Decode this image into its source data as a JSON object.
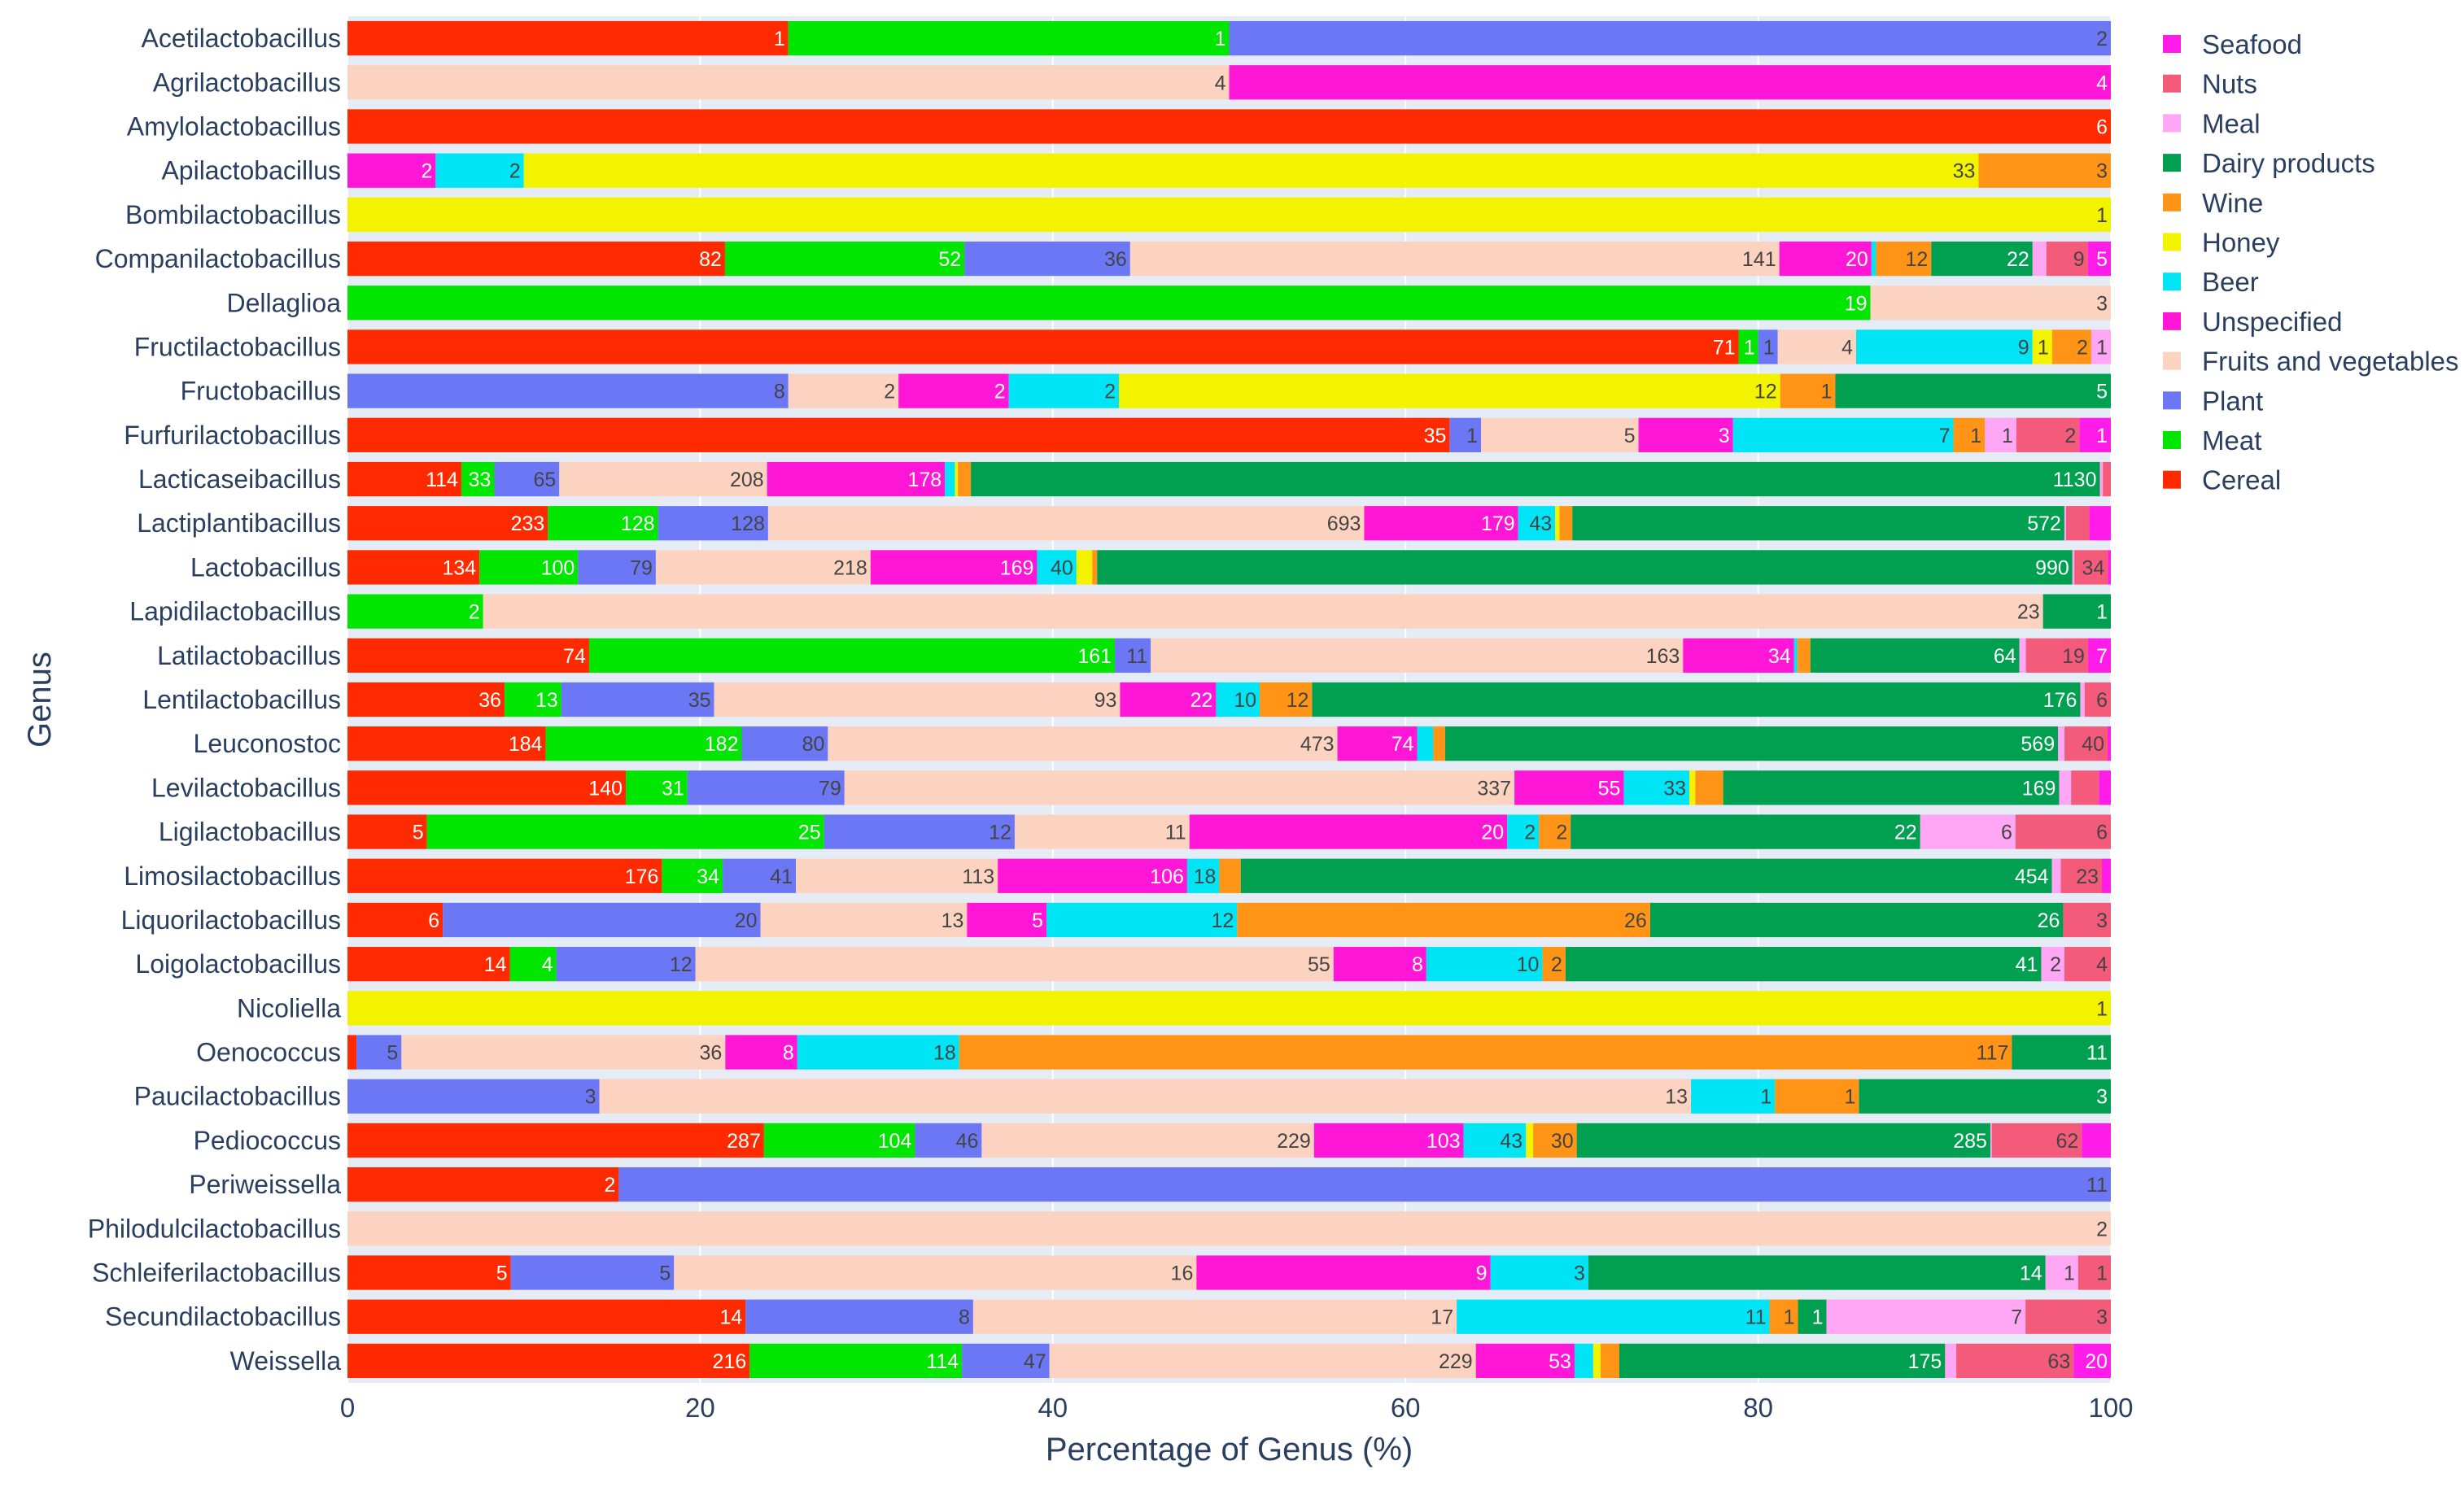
{
  "chart_data": {
    "type": "bar",
    "orientation": "horizontal",
    "stacking": "percent",
    "xlabel": "Percentage of Genus (%)",
    "ylabel": "Genus",
    "xlim": [
      0,
      100
    ],
    "xticks": [
      0,
      20,
      40,
      60,
      80,
      100
    ],
    "grid": true,
    "legend_position": "top-right",
    "legend_order": [
      "Seafood",
      "Nuts",
      "Meal",
      "Dairy products",
      "Wine",
      "Honey",
      "Beer",
      "Unspecified",
      "Fruits and vegetables",
      "Plant",
      "Meat",
      "Cereal"
    ],
    "stack_order": [
      "Cereal",
      "Meat",
      "Plant",
      "Fruits and vegetables",
      "Unspecified",
      "Beer",
      "Honey",
      "Wine",
      "Dairy products",
      "Meal",
      "Nuts",
      "Seafood"
    ],
    "colors": {
      "Cereal": "#ff2a00",
      "Meat": "#00e600",
      "Plant": "#6b77f5",
      "Fruits and vegetables": "#fcd3c0",
      "Unspecified": "#ff16d6",
      "Beer": "#00e5f5",
      "Honey": "#f3f300",
      "Wine": "#ff9416",
      "Dairy products": "#00a050",
      "Meal": "#ffa6f5",
      "Nuts": "#f45a7a",
      "Seafood": "#ff1ce8"
    },
    "categories": [
      "Acetilactobacillus",
      "Agrilactobacillus",
      "Amylolactobacillus",
      "Apilactobacillus",
      "Bombilactobacillus",
      "Companilactobacillus",
      "Dellaglioa",
      "Fructilactobacillus",
      "Fructobacillus",
      "Furfurilactobacillus",
      "Lacticaseibacillus",
      "Lactiplantibacillus",
      "Lactobacillus",
      "Lapidilactobacillus",
      "Latilactobacillus",
      "Lentilactobacillus",
      "Leuconostoc",
      "Levilactobacillus",
      "Ligilactobacillus",
      "Limosilactobacillus",
      "Liquorilactobacillus",
      "Loigolactobacillus",
      "Nicoliella",
      "Oenococcus",
      "Paucilactobacillus",
      "Pediococcus",
      "Periweissella",
      "Philodulcilactobacillus",
      "Schleiferilactobacillus",
      "Secundilactobacillus",
      "Weissella"
    ],
    "series": [
      {
        "name": "Cereal",
        "values": [
          1,
          0,
          6,
          0,
          0,
          82,
          0,
          71,
          0,
          35,
          114,
          233,
          134,
          0,
          74,
          36,
          184,
          140,
          5,
          176,
          6,
          14,
          0,
          1,
          0,
          287,
          2,
          0,
          5,
          14,
          216
        ]
      },
      {
        "name": "Meat",
        "values": [
          1,
          0,
          0,
          0,
          0,
          52,
          19,
          1,
          0,
          0,
          33,
          128,
          100,
          2,
          161,
          13,
          182,
          31,
          25,
          34,
          0,
          4,
          0,
          0,
          0,
          104,
          0,
          0,
          0,
          0,
          114
        ]
      },
      {
        "name": "Plant",
        "values": [
          2,
          0,
          0,
          0,
          0,
          36,
          0,
          1,
          8,
          1,
          65,
          128,
          79,
          0,
          11,
          35,
          80,
          79,
          12,
          41,
          20,
          12,
          0,
          5,
          3,
          46,
          11,
          0,
          5,
          8,
          47
        ]
      },
      {
        "name": "Fruits and vegetables",
        "values": [
          0,
          4,
          0,
          0,
          0,
          141,
          3,
          4,
          2,
          5,
          208,
          693,
          218,
          23,
          163,
          93,
          473,
          337,
          11,
          113,
          13,
          55,
          0,
          36,
          13,
          229,
          0,
          2,
          16,
          17,
          229
        ]
      },
      {
        "name": "Unspecified",
        "values": [
          0,
          4,
          0,
          2,
          0,
          20,
          0,
          0,
          2,
          3,
          178,
          179,
          169,
          0,
          34,
          22,
          74,
          55,
          20,
          106,
          5,
          8,
          0,
          8,
          0,
          103,
          0,
          0,
          9,
          0,
          53
        ]
      },
      {
        "name": "Beer",
        "values": [
          0,
          0,
          0,
          2,
          0,
          1,
          0,
          9,
          2,
          7,
          10,
          43,
          40,
          0,
          1,
          10,
          15,
          33,
          2,
          18,
          12,
          10,
          0,
          18,
          1,
          43,
          0,
          0,
          3,
          11,
          10
        ]
      },
      {
        "name": "Honey",
        "values": [
          0,
          0,
          0,
          33,
          1,
          0,
          0,
          1,
          12,
          0,
          3,
          5,
          16,
          0,
          0,
          0,
          0,
          3,
          0,
          0,
          0,
          0,
          1,
          0,
          0,
          5,
          0,
          0,
          0,
          0,
          4
        ]
      },
      {
        "name": "Wine",
        "values": [
          0,
          0,
          0,
          3,
          0,
          12,
          0,
          2,
          1,
          1,
          13,
          15,
          5,
          0,
          4,
          12,
          11,
          14,
          2,
          12,
          26,
          2,
          0,
          117,
          1,
          30,
          0,
          0,
          0,
          1,
          10
        ]
      },
      {
        "name": "Dairy products",
        "values": [
          0,
          0,
          0,
          0,
          0,
          22,
          0,
          0,
          5,
          0,
          1130,
          572,
          990,
          1,
          64,
          176,
          569,
          169,
          22,
          454,
          26,
          41,
          0,
          11,
          3,
          285,
          0,
          0,
          14,
          1,
          175
        ]
      },
      {
        "name": "Meal",
        "values": [
          0,
          0,
          0,
          0,
          0,
          3,
          0,
          1,
          0,
          1,
          3,
          2,
          2,
          0,
          2,
          1,
          6,
          6,
          6,
          5,
          0,
          2,
          0,
          0,
          0,
          1,
          0,
          0,
          1,
          7,
          6
        ]
      },
      {
        "name": "Nuts",
        "values": [
          0,
          0,
          0,
          0,
          0,
          9,
          0,
          0,
          0,
          2,
          8,
          27,
          34,
          0,
          19,
          6,
          40,
          14,
          6,
          23,
          3,
          4,
          0,
          0,
          0,
          62,
          0,
          0,
          1,
          3,
          63
        ]
      },
      {
        "name": "Seafood",
        "values": [
          0,
          0,
          0,
          0,
          0,
          5,
          0,
          0,
          0,
          1,
          0,
          25,
          3,
          0,
          7,
          0,
          3,
          6,
          0,
          5,
          0,
          0,
          0,
          0,
          0,
          20,
          0,
          0,
          0,
          0,
          20
        ]
      }
    ]
  }
}
